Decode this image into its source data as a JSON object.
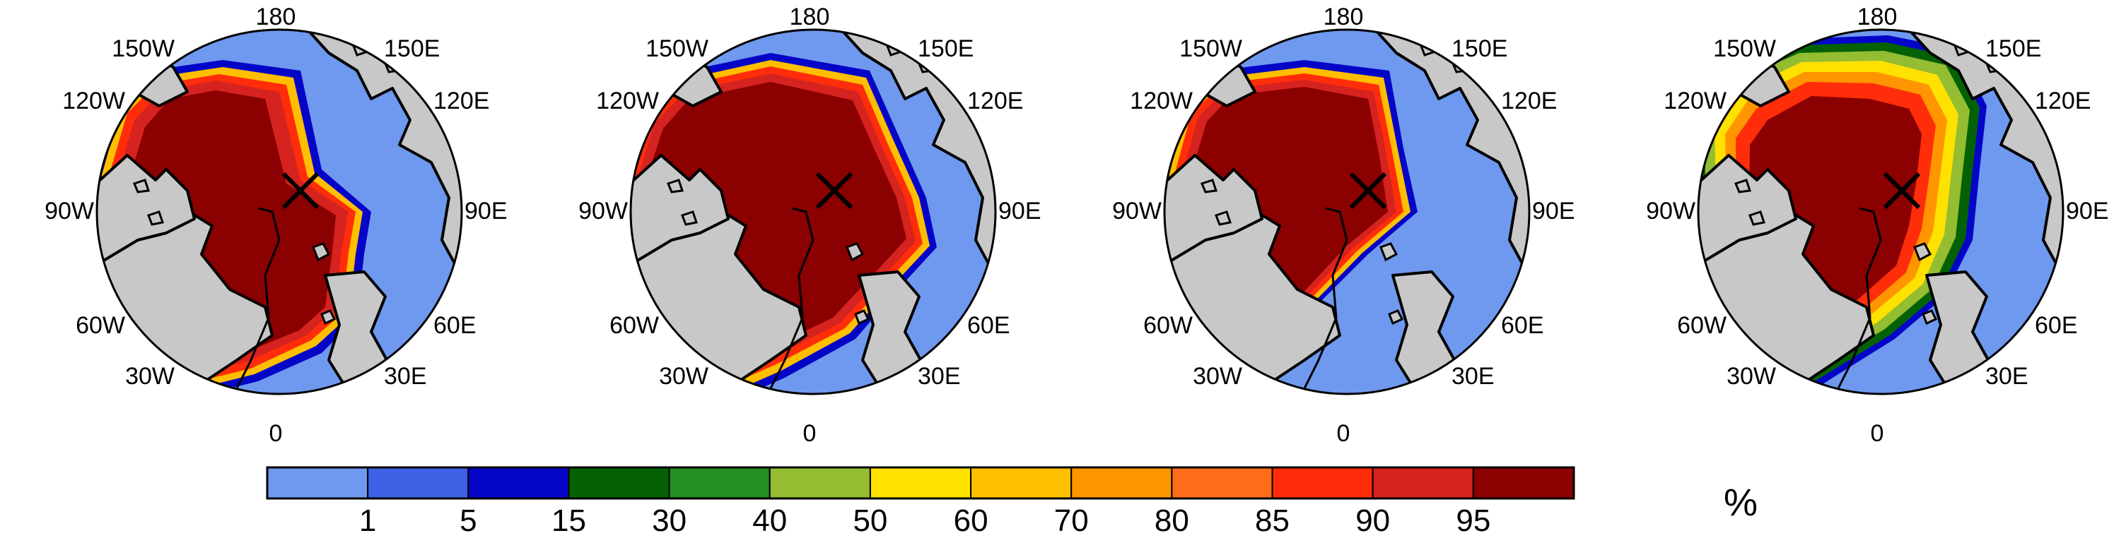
{
  "colors": {
    "ocean": "#6f99ee",
    "land": "#c8c8c8",
    "outline": "#000000",
    "bins": [
      "#6f99ee",
      "#3d62e6",
      "#0505c8",
      "#046204",
      "#238e23",
      "#94bd32",
      "#ffe100",
      "#ffbf00",
      "#ff9500",
      "#ff6d1a",
      "#ff2d0a",
      "#d6231f",
      "#8b0000"
    ]
  },
  "maps": [
    {
      "projection": "polar-stereographic",
      "marker": "x-mark",
      "lon_labels": [
        "180",
        "150W",
        "150E",
        "120W",
        "120E",
        "90W",
        "90E",
        "60W",
        "60E",
        "30W",
        "30E",
        "0"
      ]
    },
    {
      "projection": "polar-stereographic",
      "marker": "x-mark",
      "lon_labels": [
        "180",
        "150W",
        "150E",
        "120W",
        "120E",
        "90W",
        "90E",
        "60W",
        "60E",
        "30W",
        "30E",
        "0"
      ]
    },
    {
      "projection": "polar-stereographic",
      "marker": "x-mark",
      "lon_labels": [
        "180",
        "150W",
        "150E",
        "120W",
        "120E",
        "90W",
        "90E",
        "60W",
        "60E",
        "30W",
        "30E",
        "0"
      ]
    },
    {
      "projection": "polar-stereographic",
      "marker": "x-mark",
      "lon_labels": [
        "180",
        "150W",
        "150E",
        "120W",
        "120E",
        "90W",
        "90E",
        "60W",
        "60E",
        "30W",
        "30E",
        "0"
      ]
    }
  ],
  "colorbar": {
    "tick_labels": [
      "1",
      "5",
      "15",
      "30",
      "40",
      "50",
      "60",
      "70",
      "80",
      "85",
      "90",
      "95"
    ],
    "unit": "%"
  }
}
